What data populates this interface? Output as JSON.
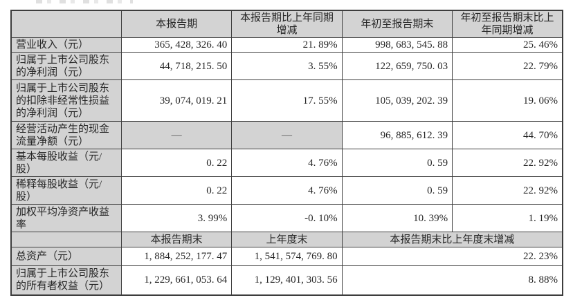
{
  "table": {
    "colors": {
      "header_bg": "#d3d3d3",
      "border": "#3d3d3d",
      "text": "#262626",
      "cell_bg": "#ffffff"
    },
    "section1": {
      "headers": [
        "本报告期",
        "本报告期比上年同期增减",
        "年初至报告期末",
        "年初至报告期末比上年同期增减"
      ],
      "rows": [
        {
          "label": "营业收入（元）",
          "cells": [
            "365, 428, 326. 40",
            "21. 89%",
            "998, 683, 545. 88",
            "25. 46%"
          ]
        },
        {
          "label": "归属于上市公司股东的净利润（元）",
          "cells": [
            "44, 718, 215. 50",
            "3. 55%",
            "122, 659, 750. 03",
            "22. 79%"
          ]
        },
        {
          "label": "归属于上市公司股东的扣除非经常性损益的净利润（元）",
          "cells": [
            "39, 074, 019. 21",
            "17. 55%",
            "105, 039, 202. 39",
            "19. 06%"
          ]
        },
        {
          "label": "经营活动产生的现金流量净额（元）",
          "cells": [
            "—",
            "—",
            "96, 885, 612. 39",
            "44. 70%"
          ]
        },
        {
          "label": "基本每股收益（元/股）",
          "cells": [
            "0. 22",
            "4. 76%",
            "0. 59",
            "22. 92%"
          ]
        },
        {
          "label": "稀释每股收益（元/股）",
          "cells": [
            "0. 22",
            "4. 76%",
            "0. 59",
            "22. 92%"
          ]
        },
        {
          "label": "加权平均净资产收益率",
          "cells": [
            "3. 99%",
            "-0. 10%",
            "10. 39%",
            "1. 19%"
          ]
        }
      ]
    },
    "section2": {
      "headers": [
        "本报告期末",
        "上年度末",
        "本报告期末比上年度末增减"
      ],
      "rows": [
        {
          "label": "总资产（元）",
          "cells": [
            "1, 884, 252, 177. 47",
            "1, 541, 574, 769. 80",
            "22. 23%"
          ]
        },
        {
          "label": "归属于上市公司股东的所有者权益（元）",
          "cells": [
            "1, 229, 661, 053. 64",
            "1, 129, 401, 303. 56",
            "8. 88%"
          ]
        }
      ]
    }
  }
}
